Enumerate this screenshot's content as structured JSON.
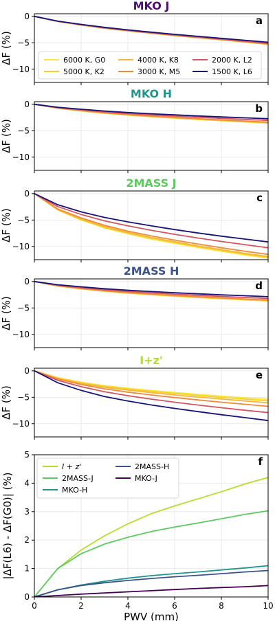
{
  "chart_data": [
    {
      "type": "line",
      "title": "MKO J",
      "title_color": "#4b0e6e",
      "panel_label": "a",
      "ylabel": "ΔF (%)",
      "xlim": [
        0,
        10
      ],
      "ylim": [
        -12.5,
        0.5
      ],
      "yticks": [
        0,
        -5,
        -10
      ],
      "legend": {
        "placement": "lower-center",
        "columns": 3
      },
      "x": [
        0,
        1,
        2,
        3,
        4,
        5,
        6,
        7,
        8,
        9,
        10
      ],
      "series": [
        {
          "name": "6000 K, G0",
          "color": "#f7e73c",
          "values": [
            0,
            -0.95,
            -1.65,
            -2.25,
            -2.75,
            -3.2,
            -3.65,
            -4.05,
            -4.45,
            -4.85,
            -5.3
          ]
        },
        {
          "name": "5000 K, K2",
          "color": "#f5d030",
          "values": [
            0,
            -0.95,
            -1.64,
            -2.24,
            -2.74,
            -3.19,
            -3.64,
            -4.04,
            -4.44,
            -4.84,
            -5.28
          ]
        },
        {
          "name": "4000 K, K8",
          "color": "#f5b73a",
          "values": [
            0,
            -0.95,
            -1.63,
            -2.22,
            -2.72,
            -3.17,
            -3.62,
            -4.02,
            -4.42,
            -4.82,
            -5.26
          ]
        },
        {
          "name": "3000 K, M5",
          "color": "#ef8b3a",
          "values": [
            0,
            -0.94,
            -1.61,
            -2.2,
            -2.7,
            -3.15,
            -3.59,
            -3.99,
            -4.39,
            -4.79,
            -5.22
          ]
        },
        {
          "name": "2000 K, L2",
          "color": "#d5535f",
          "values": [
            0,
            -0.93,
            -1.58,
            -2.15,
            -2.64,
            -3.09,
            -3.52,
            -3.91,
            -4.3,
            -4.69,
            -5.1
          ]
        },
        {
          "name": "1500 K, L6",
          "color": "#16137a",
          "values": [
            0,
            -0.9,
            -1.52,
            -2.07,
            -2.55,
            -2.98,
            -3.4,
            -3.78,
            -4.15,
            -4.52,
            -4.9
          ]
        }
      ]
    },
    {
      "type": "line",
      "title": "MKO H",
      "title_color": "#1f968b",
      "panel_label": "b",
      "ylabel": "ΔF (%)",
      "xlim": [
        0,
        10
      ],
      "ylim": [
        -12.5,
        0.5
      ],
      "yticks": [
        0,
        -5,
        -10
      ],
      "x": [
        0,
        1,
        2,
        3,
        4,
        5,
        6,
        7,
        8,
        9,
        10
      ],
      "series": [
        {
          "name": "6000 K, G0",
          "color": "#f7e73c",
          "values": [
            0,
            -0.75,
            -1.25,
            -1.7,
            -2.05,
            -2.35,
            -2.62,
            -2.87,
            -3.1,
            -3.33,
            -3.55
          ]
        },
        {
          "name": "5000 K, K2",
          "color": "#f5d030",
          "values": [
            0,
            -0.74,
            -1.24,
            -1.68,
            -2.03,
            -2.33,
            -2.6,
            -2.85,
            -3.08,
            -3.3,
            -3.52
          ]
        },
        {
          "name": "4000 K, K8",
          "color": "#f5b73a",
          "values": [
            0,
            -0.72,
            -1.21,
            -1.64,
            -1.99,
            -2.29,
            -2.56,
            -2.8,
            -3.03,
            -3.25,
            -3.46
          ]
        },
        {
          "name": "3000 K, M5",
          "color": "#ef8b3a",
          "values": [
            0,
            -0.7,
            -1.17,
            -1.59,
            -1.93,
            -2.22,
            -2.48,
            -2.72,
            -2.94,
            -3.16,
            -3.36
          ]
        },
        {
          "name": "2000 K, L2",
          "color": "#d5535f",
          "values": [
            0,
            -0.62,
            -1.04,
            -1.42,
            -1.73,
            -1.99,
            -2.23,
            -2.45,
            -2.65,
            -2.85,
            -3.03
          ]
        },
        {
          "name": "1500 K, L6",
          "color": "#16137a",
          "values": [
            0,
            -0.55,
            -0.93,
            -1.27,
            -1.55,
            -1.79,
            -2.0,
            -2.2,
            -2.38,
            -2.56,
            -2.73
          ]
        }
      ]
    },
    {
      "type": "line",
      "title": "2MASS J",
      "title_color": "#5ec962",
      "panel_label": "c",
      "ylabel": "ΔF (%)",
      "xlim": [
        0,
        10
      ],
      "ylim": [
        -12.5,
        0.5
      ],
      "yticks": [
        0,
        -5,
        -10
      ],
      "x": [
        0,
        1,
        2,
        3,
        4,
        5,
        6,
        7,
        8,
        9,
        10
      ],
      "series": [
        {
          "name": "6000 K, G0",
          "color": "#f7e73c",
          "values": [
            0,
            -3.1,
            -5.0,
            -6.5,
            -7.6,
            -8.6,
            -9.4,
            -10.2,
            -10.9,
            -11.6,
            -12.2
          ]
        },
        {
          "name": "5000 K, K2",
          "color": "#f5d030",
          "values": [
            0,
            -3.05,
            -4.9,
            -6.4,
            -7.5,
            -8.45,
            -9.25,
            -10.05,
            -10.75,
            -11.45,
            -12.05
          ]
        },
        {
          "name": "4000 K, K8",
          "color": "#f5b73a",
          "values": [
            0,
            -3.0,
            -4.8,
            -6.25,
            -7.35,
            -8.3,
            -9.1,
            -9.9,
            -10.6,
            -11.3,
            -11.9
          ]
        },
        {
          "name": "3000 K, M5",
          "color": "#ef8b3a",
          "values": [
            0,
            -2.9,
            -4.6,
            -6.0,
            -7.1,
            -8.0,
            -8.8,
            -9.55,
            -10.25,
            -10.9,
            -11.5
          ]
        },
        {
          "name": "2000 K, L2",
          "color": "#d5535f",
          "values": [
            0,
            -2.45,
            -3.95,
            -5.15,
            -6.1,
            -6.95,
            -7.7,
            -8.4,
            -9.05,
            -9.65,
            -10.25
          ]
        },
        {
          "name": "1500 K, L6",
          "color": "#16137a",
          "values": [
            0,
            -2.1,
            -3.45,
            -4.5,
            -5.35,
            -6.1,
            -6.8,
            -7.45,
            -8.05,
            -8.6,
            -9.15
          ]
        }
      ]
    },
    {
      "type": "line",
      "title": "2MASS H",
      "title_color": "#3b528b",
      "panel_label": "d",
      "ylabel": "ΔF (%)",
      "xlim": [
        0,
        10
      ],
      "ylim": [
        -12.5,
        0.5
      ],
      "yticks": [
        0,
        -5,
        -10
      ],
      "x": [
        0,
        1,
        2,
        3,
        4,
        5,
        6,
        7,
        8,
        9,
        10
      ],
      "series": [
        {
          "name": "6000 K, G0",
          "color": "#f7e73c",
          "values": [
            0,
            -0.85,
            -1.4,
            -1.85,
            -2.2,
            -2.5,
            -2.77,
            -3.02,
            -3.25,
            -3.47,
            -3.68
          ]
        },
        {
          "name": "5000 K, K2",
          "color": "#f5d030",
          "values": [
            0,
            -0.84,
            -1.38,
            -1.83,
            -2.18,
            -2.48,
            -2.75,
            -3.0,
            -3.22,
            -3.44,
            -3.65
          ]
        },
        {
          "name": "4000 K, K8",
          "color": "#f5b73a",
          "values": [
            0,
            -0.82,
            -1.35,
            -1.79,
            -2.13,
            -2.43,
            -2.7,
            -2.94,
            -3.16,
            -3.38,
            -3.58
          ]
        },
        {
          "name": "3000 K, M5",
          "color": "#ef8b3a",
          "values": [
            0,
            -0.8,
            -1.31,
            -1.74,
            -2.07,
            -2.36,
            -2.62,
            -2.86,
            -3.08,
            -3.29,
            -3.49
          ]
        },
        {
          "name": "2000 K, L2",
          "color": "#d5535f",
          "values": [
            0,
            -0.7,
            -1.16,
            -1.55,
            -1.86,
            -2.13,
            -2.37,
            -2.6,
            -2.81,
            -3.01,
            -3.2
          ]
        },
        {
          "name": "1500 K, L6",
          "color": "#16137a",
          "values": [
            0,
            -0.6,
            -1.0,
            -1.36,
            -1.64,
            -1.89,
            -2.11,
            -2.32,
            -2.51,
            -2.69,
            -2.87
          ]
        }
      ]
    },
    {
      "type": "line",
      "title": "I+z'",
      "title_color": "#b5de2b",
      "panel_label": "e",
      "ylabel": "ΔF (%)",
      "xlim": [
        0,
        10
      ],
      "ylim": [
        -12.5,
        0.5
      ],
      "yticks": [
        0,
        -5,
        -10
      ],
      "x": [
        0,
        1,
        2,
        3,
        4,
        5,
        6,
        7,
        8,
        9,
        10
      ],
      "series": [
        {
          "name": "6000 K, G0",
          "color": "#f7e73c",
          "values": [
            0,
            -1.3,
            -2.15,
            -2.8,
            -3.3,
            -3.72,
            -4.1,
            -4.45,
            -4.78,
            -5.1,
            -5.4
          ]
        },
        {
          "name": "5000 K, K2",
          "color": "#f5d030",
          "values": [
            0,
            -1.35,
            -2.25,
            -2.93,
            -3.45,
            -3.9,
            -4.3,
            -4.67,
            -5.02,
            -5.35,
            -5.67
          ]
        },
        {
          "name": "4000 K, K8",
          "color": "#f5b73a",
          "values": [
            0,
            -1.42,
            -2.38,
            -3.1,
            -3.65,
            -4.13,
            -4.57,
            -4.97,
            -5.34,
            -5.7,
            -6.05
          ]
        },
        {
          "name": "3000 K, M5",
          "color": "#ef8b3a",
          "values": [
            0,
            -1.55,
            -2.6,
            -3.4,
            -4.03,
            -4.57,
            -5.05,
            -5.5,
            -5.93,
            -6.33,
            -6.72
          ]
        },
        {
          "name": "2000 K, L2",
          "color": "#d5535f",
          "values": [
            0,
            -1.8,
            -3.0,
            -3.95,
            -4.7,
            -5.35,
            -5.93,
            -6.47,
            -6.98,
            -7.45,
            -7.9
          ]
        },
        {
          "name": "1500 K, L6",
          "color": "#16137a",
          "values": [
            0,
            -2.25,
            -3.7,
            -4.85,
            -5.7,
            -6.45,
            -7.1,
            -7.72,
            -8.3,
            -8.85,
            -9.4
          ]
        }
      ]
    },
    {
      "type": "line",
      "title": "",
      "panel_label": "f",
      "ylabel": "|ΔF(L6) - ΔF(G0)| (%)",
      "xlabel": "PWV (mm)",
      "xlim": [
        0,
        10
      ],
      "ylim": [
        0,
        5
      ],
      "yticks": [
        0,
        1,
        2,
        3,
        4,
        5
      ],
      "xticks": [
        0,
        2,
        4,
        6,
        8,
        10
      ],
      "legend": {
        "placement": "upper-left",
        "columns": 2
      },
      "x": [
        0,
        1,
        2,
        3,
        4,
        5,
        6,
        7,
        8,
        9,
        10
      ],
      "series": [
        {
          "name": "I + z'",
          "italic": true,
          "color": "#b5de2b",
          "values": [
            0,
            1.0,
            1.65,
            2.15,
            2.57,
            2.93,
            3.2,
            3.45,
            3.7,
            3.97,
            4.2
          ]
        },
        {
          "name": "2MASS-J",
          "color": "#5ec962",
          "values": [
            0,
            1.0,
            1.52,
            1.86,
            2.1,
            2.3,
            2.46,
            2.6,
            2.75,
            2.9,
            3.03
          ]
        },
        {
          "name": "MKO-H",
          "color": "#1f968b",
          "values": [
            0,
            0.25,
            0.42,
            0.55,
            0.66,
            0.75,
            0.82,
            0.88,
            0.95,
            1.02,
            1.1
          ]
        },
        {
          "name": "2MASS-H",
          "color": "#3b528b",
          "values": [
            0,
            0.25,
            0.4,
            0.5,
            0.58,
            0.65,
            0.71,
            0.76,
            0.82,
            0.88,
            0.93
          ]
        },
        {
          "name": "MKO-J",
          "color": "#440154",
          "values": [
            0,
            0.05,
            0.1,
            0.14,
            0.18,
            0.22,
            0.26,
            0.3,
            0.33,
            0.36,
            0.4
          ]
        }
      ]
    }
  ]
}
